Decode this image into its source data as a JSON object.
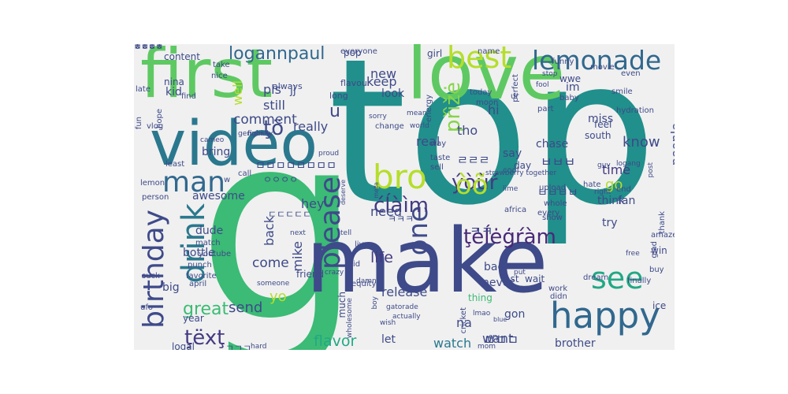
{
  "words": [
    {
      "text": "g",
      "color": "#3bbb75"
    },
    {
      "text": "top",
      "color": "#218f8b"
    },
    {
      "text": "make",
      "color": "#3e4a89"
    },
    {
      "text": "love",
      "color": "#5ec962"
    },
    {
      "text": "first",
      "color": "#5ec962"
    },
    {
      "text": "video",
      "color": "#2a788e"
    },
    {
      "text": "happy",
      "color": "#31688e"
    },
    {
      "text": "lemonade",
      "color": "#31688e"
    },
    {
      "text": "best",
      "color": "#b5de2b"
    },
    {
      "text": "see",
      "color": "#22a884"
    },
    {
      "text": "drink",
      "color": "#2a788e"
    },
    {
      "text": "birthday",
      "color": "#3e4a89"
    },
    {
      "text": "man",
      "color": "#31688e"
    },
    {
      "text": "bro",
      "color": "#b5de2b"
    },
    {
      "text": "please",
      "color": "#3e4a89"
    },
    {
      "text": "one",
      "color": "#3e4a89"
    },
    {
      "text": "ţėĺėģŕàm",
      "color": "#482878"
    },
    {
      "text": "ćĺàìm",
      "color": "#443a83"
    },
    {
      "text": "ýòùŕ",
      "color": "#443a83"
    },
    {
      "text": "òõ",
      "color": "#b5de2b"
    },
    {
      "text": "ţëxţ",
      "color": "#443a83"
    },
    {
      "text": "ţö",
      "color": "#3e4a89"
    },
    {
      "text": "přìžė",
      "color": "#86d549"
    },
    {
      "text": "logannpaul",
      "color": "#31688e"
    },
    {
      "text": "comment",
      "color": "#3e4a89"
    },
    {
      "text": "flavor",
      "color": "#22a884"
    },
    {
      "text": "watch",
      "color": "#2a788e"
    },
    {
      "text": "life",
      "color": "#443a83"
    },
    {
      "text": "come",
      "color": "#3e4a89"
    },
    {
      "text": "great",
      "color": "#3bbb75"
    },
    {
      "text": "time",
      "color": "#443a83"
    },
    {
      "text": "go",
      "color": "#b5de2b"
    },
    {
      "text": "know",
      "color": "#3e4a89"
    },
    {
      "text": "people",
      "color": "#3e4a89"
    },
    {
      "text": "really",
      "color": "#3e4a89"
    },
    {
      "text": "u",
      "color": "#3e4a89"
    },
    {
      "text": "keep",
      "color": "#3e4a89"
    },
    {
      "text": "look",
      "color": "#3e4a89"
    },
    {
      "text": "new",
      "color": "#3e4a89"
    },
    {
      "text": "need",
      "color": "#3e4a89"
    },
    {
      "text": "send",
      "color": "#3e4a89"
    },
    {
      "text": "release",
      "color": "#3e4a89"
    },
    {
      "text": "want",
      "color": "#3e4a89"
    },
    {
      "text": "brother",
      "color": "#3e4a89"
    },
    {
      "text": "mike",
      "color": "#3e4a89"
    },
    {
      "text": "back",
      "color": "#3e4a89"
    },
    {
      "text": "hey",
      "color": "#3e4a89"
    },
    {
      "text": "still",
      "color": "#3e4a89"
    },
    {
      "text": "pls",
      "color": "#3e4a89"
    },
    {
      "text": "jj",
      "color": "#3e4a89"
    },
    {
      "text": "well",
      "color": "#b5de2b"
    },
    {
      "text": "bring",
      "color": "#3e4a89"
    },
    {
      "text": "kid",
      "color": "#3e4a89"
    },
    {
      "text": "nina",
      "color": "#3e4a89"
    },
    {
      "text": "content",
      "color": "#3e4a89"
    },
    {
      "text": "awesome",
      "color": "#3e4a89"
    },
    {
      "text": "dude",
      "color": "#3e4a89"
    },
    {
      "text": "bottle",
      "color": "#3e4a89"
    },
    {
      "text": "big",
      "color": "#3e4a89"
    },
    {
      "text": "year",
      "color": "#3e4a89"
    },
    {
      "text": "logal",
      "color": "#3e4a89"
    },
    {
      "text": "yo",
      "color": "#b5de2b"
    },
    {
      "text": "let",
      "color": "#3e4a89"
    },
    {
      "text": "na",
      "color": "#3e4a89"
    },
    {
      "text": "much",
      "color": "#3e4a89"
    },
    {
      "text": "never",
      "color": "#3e4a89"
    },
    {
      "text": "bad",
      "color": "#3e4a89"
    },
    {
      "text": "try",
      "color": "#3e4a89"
    },
    {
      "text": "think",
      "color": "#3e4a89"
    },
    {
      "text": "say",
      "color": "#3e4a89"
    },
    {
      "text": "day",
      "color": "#3e4a89"
    },
    {
      "text": "south",
      "color": "#3e4a89"
    },
    {
      "text": "chase",
      "color": "#3e4a89"
    },
    {
      "text": "miss",
      "color": "#3e4a89"
    },
    {
      "text": "feel",
      "color": "#3e4a89"
    },
    {
      "text": "fan",
      "color": "#3e4a89"
    },
    {
      "text": "win",
      "color": "#3e4a89"
    },
    {
      "text": "ice",
      "color": "#3e4a89"
    },
    {
      "text": "gon",
      "color": "#3e4a89"
    },
    {
      "text": "thing",
      "color": "#3bbb75"
    },
    {
      "text": "wait",
      "color": "#3e4a89"
    },
    {
      "text": "1st",
      "color": "#3e4a89"
    },
    {
      "text": "im",
      "color": "#3e4a89"
    },
    {
      "text": "wwe",
      "color": "#3e4a89"
    },
    {
      "text": "hi",
      "color": "#3e4a89"
    },
    {
      "text": "girl",
      "color": "#3e4a89"
    },
    {
      "text": "pop",
      "color": "#3e4a89"
    },
    {
      "text": "everyone",
      "color": "#3e4a89"
    },
    {
      "text": "name",
      "color": "#3e4a89"
    },
    {
      "text": "funny",
      "color": "#3e4a89"
    },
    {
      "text": "take",
      "color": "#3e4a89"
    },
    {
      "text": "nice",
      "color": "#3e4a89"
    },
    {
      "text": "find",
      "color": "#3e4a89"
    },
    {
      "text": "always",
      "color": "#3e4a89"
    },
    {
      "text": "flavour",
      "color": "#3e4a89"
    },
    {
      "text": "long",
      "color": "#3e4a89"
    },
    {
      "text": "energy",
      "color": "#3e4a89"
    },
    {
      "text": "today",
      "color": "#3e4a89"
    },
    {
      "text": "moon",
      "color": "#3e4a89"
    },
    {
      "text": "ur",
      "color": "#3e4a89"
    },
    {
      "text": "part",
      "color": "#3e4a89"
    },
    {
      "text": "baby",
      "color": "#3e4a89"
    },
    {
      "text": "smile",
      "color": "#3e4a89"
    },
    {
      "text": "even",
      "color": "#3e4a89"
    },
    {
      "text": "movie",
      "color": "#3e4a89"
    },
    {
      "text": "stop",
      "color": "#3e4a89"
    },
    {
      "text": "hydration",
      "color": "#3e4a89"
    },
    {
      "text": "perfect",
      "color": "#3e4a89"
    },
    {
      "text": "fool",
      "color": "#3e4a89"
    },
    {
      "text": "late",
      "color": "#3e4a89"
    },
    {
      "text": "fun",
      "color": "#3e4a89"
    },
    {
      "text": "vlog",
      "color": "#3e4a89"
    },
    {
      "text": "hope",
      "color": "#3e4a89"
    },
    {
      "text": "genuinely",
      "color": "#3e4a89"
    },
    {
      "text": "fight",
      "color": "#3e4a89"
    },
    {
      "text": "cameo",
      "color": "#3e4a89"
    },
    {
      "text": "least",
      "color": "#3e4a89"
    },
    {
      "text": "call",
      "color": "#3e4a89"
    },
    {
      "text": "proud",
      "color": "#3e4a89"
    },
    {
      "text": "taste",
      "color": "#3e4a89"
    },
    {
      "text": "sell",
      "color": "#3e4a89"
    },
    {
      "text": "way",
      "color": "#3e4a89"
    },
    {
      "text": "change",
      "color": "#3e4a89"
    },
    {
      "text": "world",
      "color": "#3e4a89"
    },
    {
      "text": "mean",
      "color": "#3e4a89"
    },
    {
      "text": "sorry",
      "color": "#3e4a89"
    },
    {
      "text": "lime",
      "color": "#3e4a89"
    },
    {
      "text": "cool",
      "color": "#3e4a89"
    },
    {
      "text": "guy",
      "color": "#3e4a89"
    },
    {
      "text": "upload",
      "color": "#3e4a89"
    },
    {
      "text": "end",
      "color": "#3e4a89"
    },
    {
      "text": "logang",
      "color": "#3e4a89"
    },
    {
      "text": "whole",
      "color": "#3e4a89"
    },
    {
      "text": "hate",
      "color": "#3e4a89"
    },
    {
      "text": "right",
      "color": "#3e4a89"
    },
    {
      "text": "post",
      "color": "#3e4a89"
    },
    {
      "text": "thank",
      "color": "#3e4a89"
    },
    {
      "text": "africa",
      "color": "#3e4a89"
    },
    {
      "text": "every",
      "color": "#3e4a89"
    },
    {
      "text": "show",
      "color": "#3e4a89"
    },
    {
      "text": "amaze",
      "color": "#3e4a89"
    },
    {
      "text": "glad",
      "color": "#3e4a89"
    },
    {
      "text": "free",
      "color": "#3e4a89"
    },
    {
      "text": "buy",
      "color": "#3e4a89"
    },
    {
      "text": "dream",
      "color": "#3e4a89"
    },
    {
      "text": "work",
      "color": "#3e4a89"
    },
    {
      "text": "finally",
      "color": "#3e4a89"
    },
    {
      "text": "didn",
      "color": "#3e4a89"
    },
    {
      "text": "lemon",
      "color": "#3e4a89"
    },
    {
      "text": "person",
      "color": "#3e4a89"
    },
    {
      "text": "w",
      "color": "#3e4a89"
    },
    {
      "text": "friend",
      "color": "#3e4a89"
    },
    {
      "text": "match",
      "color": "#3e4a89"
    },
    {
      "text": "youtube",
      "color": "#3e4a89"
    },
    {
      "text": "punch",
      "color": "#3e4a89"
    },
    {
      "text": "favorite",
      "color": "#3e4a89"
    },
    {
      "text": "suck",
      "color": "#3e4a89"
    },
    {
      "text": "april",
      "color": "#3e4a89"
    },
    {
      "text": "someone",
      "color": "#3e4a89"
    },
    {
      "text": "crazy",
      "color": "#3e4a89"
    },
    {
      "text": "ufo",
      "color": "#3e4a89"
    },
    {
      "text": "hard",
      "color": "#3e4a89"
    },
    {
      "text": "next",
      "color": "#3e4a89"
    },
    {
      "text": "tell",
      "color": "#3e4a89"
    },
    {
      "text": "live",
      "color": "#3e4a89"
    },
    {
      "text": "vid",
      "color": "#3e4a89"
    },
    {
      "text": "equity",
      "color": "#3e4a89"
    },
    {
      "text": "damn",
      "color": "#3e4a89"
    },
    {
      "text": "wholesome",
      "color": "#3e4a89"
    },
    {
      "text": "boy",
      "color": "#3e4a89"
    },
    {
      "text": "gatorade",
      "color": "#3e4a89"
    },
    {
      "text": "actually",
      "color": "#3e4a89"
    },
    {
      "text": "wish",
      "color": "#3e4a89"
    },
    {
      "text": "lmao",
      "color": "#3e4a89"
    },
    {
      "text": "blue",
      "color": "#3e4a89"
    },
    {
      "text": "cry",
      "color": "#3e4a89"
    },
    {
      "text": "mom",
      "color": "#3e4a89"
    },
    {
      "text": "put",
      "color": "#3e4a89"
    },
    {
      "text": "meta",
      "color": "#3e4a89"
    },
    {
      "text": "deserve",
      "color": "#3e4a89"
    },
    {
      "text": "cricket",
      "color": "#3e4a89"
    },
    {
      "text": "strawberry together",
      "color": "#3e4a89"
    },
    {
      "text": "real",
      "color": "#3e4a89"
    },
    {
      "text": "tho",
      "color": "#3e4a89"
    },
    {
      "text": "ㅋㅋ",
      "color": "#3e4a89"
    },
    {
      "text": "ㄹㄹㄹ",
      "color": "#3e4a89"
    },
    {
      "text": "ㅂㅂㅂ",
      "color": "#3e4a89"
    },
    {
      "text": "ㅁㅁㅁ",
      "color": "#3e4a89"
    },
    {
      "text": "ㅁㅁㅁㅁㅁㅁㅁㅁ",
      "color": "#3e4a89"
    },
    {
      "text": "ㅂㅂㅂㅂ",
      "color": "#3e4a89"
    },
    {
      "text": "ㅋㅋㅋ",
      "color": "#3e4a89"
    },
    {
      "text": "ㄷㄷㄷㄷㄷ",
      "color": "#3e4a89"
    },
    {
      "text": "ㅇㅇㅇㅇ",
      "color": "#3e4a89"
    },
    {
      "text": "ㄱㄱㄱ",
      "color": "#3e4a89"
    },
    {
      "text": "ㅈㅈㅈㅈ",
      "color": "#3e4a89"
    },
    {
      "text": "ㅎㅎㅎㅎ",
      "color": "#3e4a89"
    },
    {
      "text": "ㅁㅁㅁㅁ",
      "color": "#3e4a89"
    },
    {
      "text": "ㄴㄴㄴ",
      "color": "#3e4a89"
    }
  ]
}
